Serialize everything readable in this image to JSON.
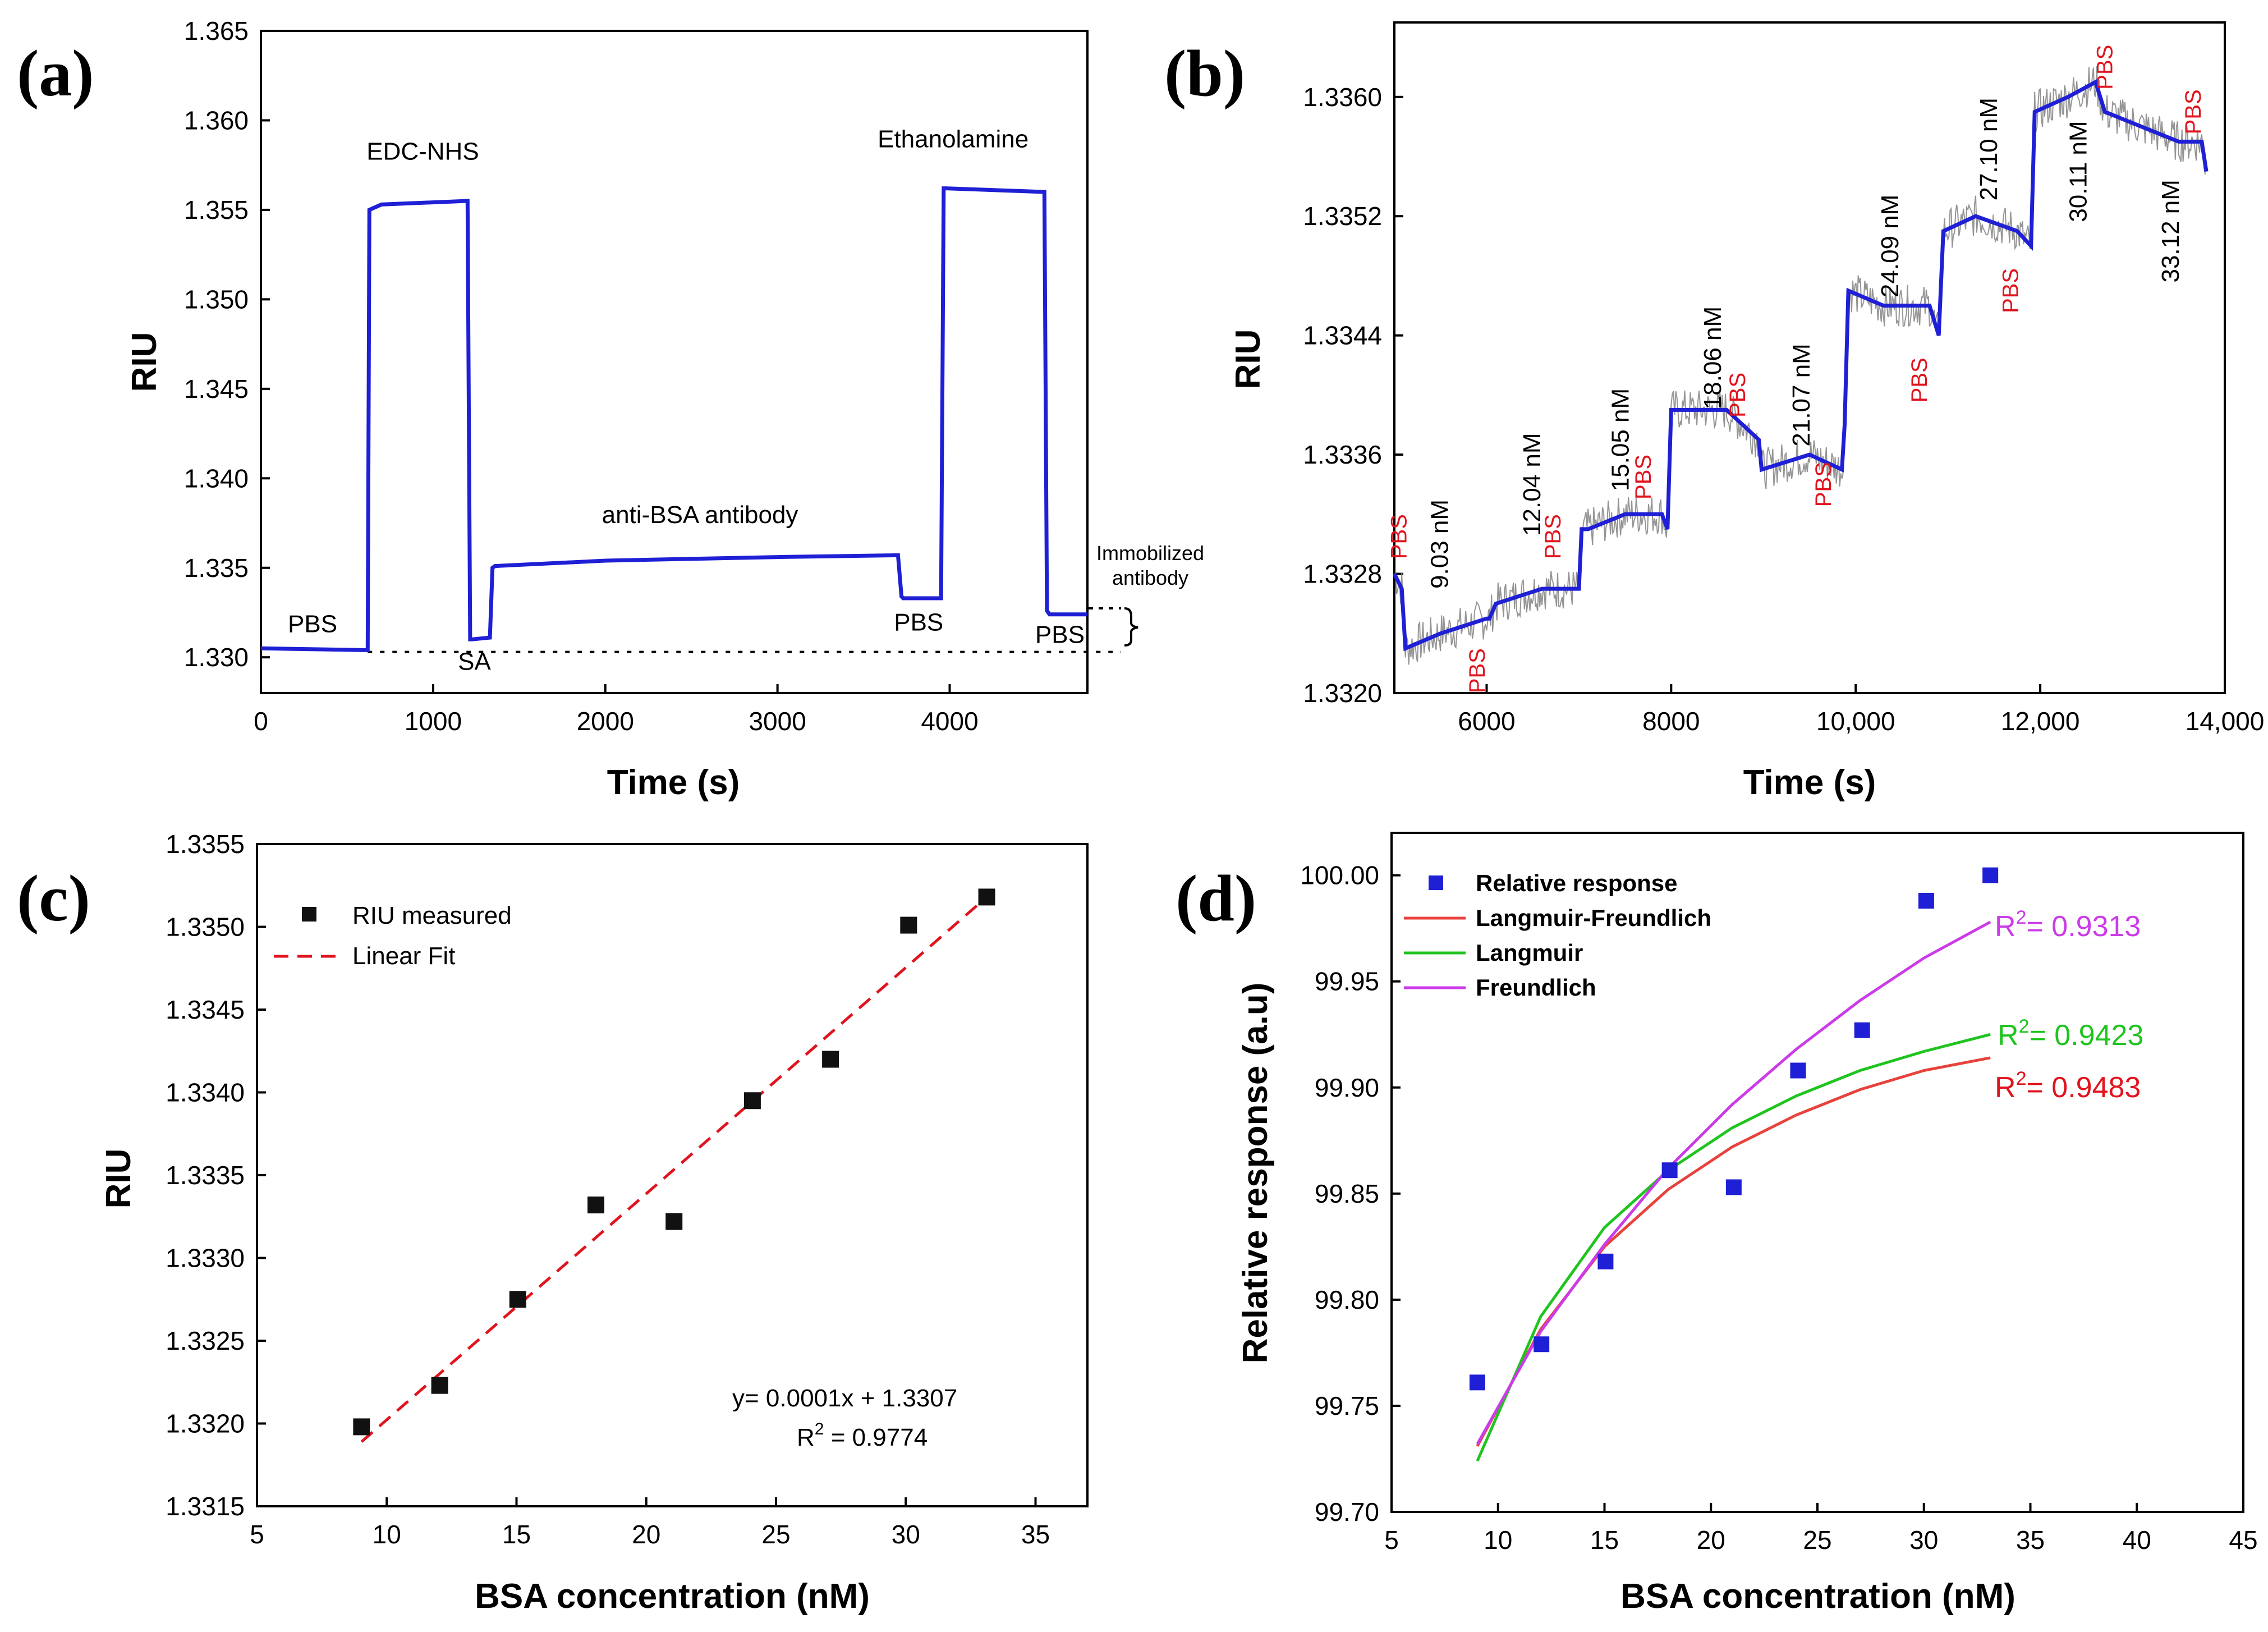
{
  "chart_data": [
    {
      "panel": "(a)",
      "type": "line",
      "xlabel": "Time (s)",
      "ylabel": "RIU",
      "xlim": [
        0,
        4800
      ],
      "ylim": [
        1.328,
        1.365
      ],
      "xticks": [
        0,
        1000,
        2000,
        3000,
        4000
      ],
      "xtick_labels": [
        "0",
        "1000",
        "2000",
        "3000",
        "4000"
      ],
      "yticks": [
        1.33,
        1.335,
        1.34,
        1.345,
        1.35,
        1.355,
        1.36,
        1.365
      ],
      "ytick_labels": [
        "1.330",
        "1.335",
        "1.340",
        "1.345",
        "1.350",
        "1.355",
        "1.360",
        "1.365"
      ],
      "series": [
        {
          "name": "RIU",
          "color": "#1f1fd6",
          "x": [
            0,
            620,
            630,
            700,
            1200,
            1215,
            1225,
            1330,
            1345,
            1360,
            2000,
            3000,
            3700,
            3720,
            3730,
            3950,
            3965,
            3980,
            4550,
            4565,
            4580,
            4800
          ],
          "y": [
            1.3305,
            1.3304,
            1.355,
            1.3553,
            1.3555,
            1.331,
            1.331,
            1.3311,
            1.335,
            1.3351,
            1.3354,
            1.3356,
            1.3357,
            1.3334,
            1.3333,
            1.3333,
            1.3562,
            1.3562,
            1.356,
            1.3326,
            1.3324,
            1.3324
          ]
        }
      ],
      "reference_line_y": 1.3303,
      "annotations": [
        {
          "text": "PBS",
          "x": 300,
          "y": 1.3314
        },
        {
          "text": "EDC-NHS",
          "x": 940,
          "y": 1.3578
        },
        {
          "text": "SA",
          "x": 1240,
          "y": 1.3293
        },
        {
          "text": "anti-BSA antibody",
          "x": 2550,
          "y": 1.3375
        },
        {
          "text": "PBS",
          "x": 3820,
          "y": 1.3315
        },
        {
          "text": "Ethanolamine",
          "x": 4020,
          "y": 1.3585
        },
        {
          "text": "PBS",
          "x": 4640,
          "y": 1.3308
        }
      ],
      "side_label": [
        "Immobilized",
        "antibody"
      ]
    },
    {
      "panel": "(b)",
      "type": "line",
      "xlabel": "Time (s)",
      "ylabel": "RIU",
      "xlim": [
        5000,
        14000
      ],
      "ylim": [
        1.332,
        1.3365
      ],
      "xticks": [
        6000,
        8000,
        10000,
        12000,
        14000
      ],
      "xtick_labels": [
        "6000",
        "8000",
        "10,000",
        "12,000",
        "14,000"
      ],
      "yticks": [
        1.332,
        1.3328,
        1.3336,
        1.3344,
        1.3352,
        1.336
      ],
      "ytick_labels": [
        "1.3320",
        "1.3328",
        "1.3336",
        "1.3344",
        "1.3352",
        "1.3360"
      ],
      "series": [
        {
          "name": "RIU",
          "color": "#1f1fd6",
          "noise_color": "#8a8a8a",
          "x": [
            5000,
            5080,
            5120,
            5500,
            6000,
            6030,
            6100,
            6600,
            7000,
            7030,
            7100,
            7500,
            7900,
            7960,
            8000,
            8100,
            8600,
            8950,
            8980,
            9500,
            9850,
            9880,
            9920,
            10300,
            10800,
            10900,
            10950,
            11300,
            11750,
            11900,
            11940,
            12300,
            12600,
            12700,
            13100,
            13500,
            13750,
            13800
          ],
          "y": [
            1.3328,
            1.3327,
            1.3323,
            1.3324,
            1.3325,
            1.3325,
            1.3326,
            1.3327,
            1.3327,
            1.3331,
            1.3331,
            1.3332,
            1.3332,
            1.3331,
            1.3339,
            1.3339,
            1.3339,
            1.3337,
            1.3335,
            1.3336,
            1.3335,
            1.3338,
            1.3347,
            1.3346,
            1.3346,
            1.3344,
            1.3351,
            1.3352,
            1.3351,
            1.335,
            1.3359,
            1.336,
            1.3361,
            1.3359,
            1.3358,
            1.3357,
            1.3357,
            1.3355
          ]
        }
      ],
      "concentration_labels": [
        {
          "text": "9.03 nM",
          "x": 5580,
          "y": 1.333
        },
        {
          "text": "12.04 nM",
          "x": 6580,
          "y": 1.3334
        },
        {
          "text": "15.05 nM",
          "x": 7540,
          "y": 1.3337
        },
        {
          "text": "18.06 nM",
          "x": 8540,
          "y": 1.33425
        },
        {
          "text": "21.07 nM",
          "x": 9500,
          "y": 1.334
        },
        {
          "text": "24.09 nM",
          "x": 10460,
          "y": 1.335
        },
        {
          "text": "27.10 nM",
          "x": 11530,
          "y": 1.33565
        },
        {
          "text": "30.11 nM",
          "x": 12500,
          "y": 1.3355
        },
        {
          "text": "33.12 nM",
          "x": 13500,
          "y": 1.3351
        }
      ],
      "pbs_labels": [
        {
          "text": "PBS",
          "x": 5130,
          "y": 1.33305
        },
        {
          "text": "PBS",
          "x": 5980,
          "y": 1.33215
        },
        {
          "text": "PBS",
          "x": 6800,
          "y": 1.33305
        },
        {
          "text": "PBS",
          "x": 7780,
          "y": 1.33345
        },
        {
          "text": "PBS",
          "x": 8800,
          "y": 1.334
        },
        {
          "text": "PBS",
          "x": 9730,
          "y": 1.3334
        },
        {
          "text": "PBS",
          "x": 10770,
          "y": 1.3341
        },
        {
          "text": "PBS",
          "x": 11760,
          "y": 1.3347
        },
        {
          "text": "PBS",
          "x": 12780,
          "y": 1.3362
        },
        {
          "text": "PBS",
          "x": 13740,
          "y": 1.3359
        }
      ],
      "pbs_color": "#e0141e"
    },
    {
      "panel": "(c)",
      "type": "scatter",
      "xlabel": "BSA concentration (nM)",
      "ylabel": "RIU",
      "xlim": [
        5,
        37
      ],
      "ylim": [
        1.3315,
        1.3355
      ],
      "xticks": [
        5,
        10,
        15,
        20,
        25,
        30,
        35
      ],
      "xtick_labels": [
        "5",
        "10",
        "15",
        "20",
        "25",
        "30",
        "35"
      ],
      "yticks": [
        1.3315,
        1.332,
        1.3325,
        1.333,
        1.3335,
        1.334,
        1.3345,
        1.335,
        1.3355
      ],
      "ytick_labels": [
        "1.3315",
        "1.3320",
        "1.3325",
        "1.3330",
        "1.3335",
        "1.3340",
        "1.3345",
        "1.3350",
        "1.3355"
      ],
      "series": [
        {
          "name": "RIU measured",
          "color": "#111111",
          "x": [
            9.03,
            12.04,
            15.05,
            18.06,
            21.07,
            24.09,
            27.1,
            30.11,
            33.12
          ],
          "y": [
            1.33198,
            1.33223,
            1.33275,
            1.33332,
            1.33322,
            1.33395,
            1.3342,
            1.33501,
            1.33518
          ]
        }
      ],
      "fit": {
        "name": "Linear Fit",
        "color": "#e0141e",
        "x": [
          9.03,
          33.12
        ],
        "y": [
          1.33189,
          1.33518
        ]
      },
      "legend": [
        "RIU measured",
        "Linear Fit"
      ],
      "equation": "y= 0.0001x + 1.3307",
      "r2_prefix": "R",
      "r2_sup": "2",
      "r2_value": " = 0.9774"
    },
    {
      "panel": "(d)",
      "type": "scatter",
      "xlabel": "BSA concentration (nM)",
      "ylabel": "Relative response (a.u)",
      "xlim": [
        5,
        45
      ],
      "ylim": [
        99.7,
        100.02
      ],
      "xticks": [
        5,
        10,
        15,
        20,
        25,
        30,
        35,
        40,
        45
      ],
      "xtick_labels": [
        "5",
        "10",
        "15",
        "20",
        "25",
        "30",
        "35",
        "40",
        "45"
      ],
      "yticks": [
        99.7,
        99.75,
        99.8,
        99.85,
        99.9,
        99.95,
        100.0
      ],
      "ytick_labels": [
        "99.70",
        "99.75",
        "99.80",
        "99.85",
        "99.90",
        "99.95",
        "100.00"
      ],
      "points": {
        "name": "Relative response",
        "color": "#1f1fd6",
        "x": [
          9.03,
          12.04,
          15.05,
          18.06,
          21.07,
          24.09,
          27.1,
          30.11,
          33.12
        ],
        "y": [
          99.761,
          99.779,
          99.818,
          99.861,
          99.853,
          99.908,
          99.927,
          99.988,
          100.0
        ]
      },
      "series": [
        {
          "name": "Langmuir-Freundlich",
          "color": "#e8423c",
          "x": [
            9.03,
            12,
            15,
            18,
            21,
            24,
            27,
            30,
            33.12
          ],
          "y": [
            99.731,
            99.786,
            99.825,
            99.852,
            99.872,
            99.887,
            99.899,
            99.908,
            99.914
          ]
        },
        {
          "name": "Langmuir",
          "color": "#1fc41f",
          "x": [
            9.03,
            12,
            15,
            18,
            21,
            24,
            27,
            30,
            33.12
          ],
          "y": [
            99.724,
            99.792,
            99.834,
            99.861,
            99.881,
            99.896,
            99.908,
            99.917,
            99.925
          ]
        },
        {
          "name": "Freundlich",
          "color": "#cc3be8",
          "x": [
            9.03,
            12,
            15,
            18,
            21,
            24,
            27,
            30,
            33.12
          ],
          "y": [
            99.732,
            99.785,
            99.826,
            99.862,
            99.892,
            99.918,
            99.941,
            99.961,
            99.978
          ]
        }
      ],
      "legend": [
        "Relative response",
        "Langmuir-Freundlich",
        "Langmuir",
        "Freundlich"
      ],
      "r2_labels": [
        {
          "prefix": "R",
          "sup": "2",
          "value": "= 0.9313",
          "color": "#cc3be8"
        },
        {
          "prefix": "R",
          "sup": "2",
          "value": "= 0.9423",
          "color": "#1fc41f"
        },
        {
          "prefix": "R",
          "sup": "2",
          "value": "= 0.9483",
          "color": "#e0141e"
        }
      ]
    }
  ]
}
